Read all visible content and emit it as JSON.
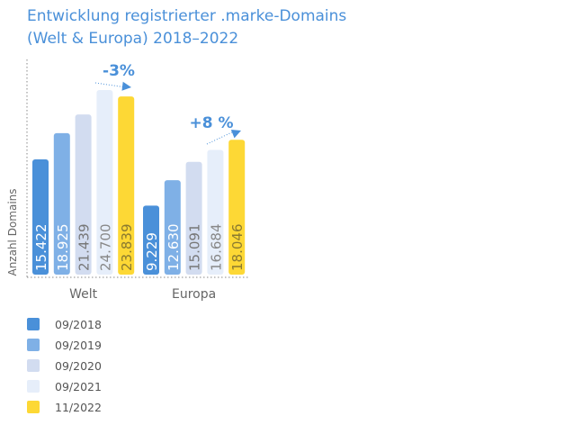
{
  "chart_data": {
    "type": "bar",
    "title": "Entwicklung registrierter .marke-Domains (Welt & Europa) 2018–2022",
    "title_lines": [
      "Entwicklung registrierter .marke-Domains",
      "(Welt & Europa) 2018–2022"
    ],
    "ylabel": "Anzahl Domains",
    "categories": [
      "Welt",
      "Europa"
    ],
    "series": [
      {
        "name": "09/2018",
        "color": "#4a90d9",
        "values": [
          15422,
          9229
        ],
        "labels": [
          "15.422",
          "9.229"
        ]
      },
      {
        "name": "09/2019",
        "color": "#7fb0e6",
        "values": [
          18925,
          12630
        ],
        "labels": [
          "18.925",
          "12.630"
        ]
      },
      {
        "name": "09/2020",
        "color": "#d2dcf0",
        "values": [
          21439,
          15091
        ],
        "labels": [
          "21.439",
          "15.091"
        ]
      },
      {
        "name": "09/2021",
        "color": "#e6eefa",
        "values": [
          24700,
          16684
        ],
        "labels": [
          "24.700",
          "16.684"
        ]
      },
      {
        "name": "11/2022",
        "color": "#fdd835",
        "values": [
          23839,
          18046
        ],
        "labels": [
          "23.839",
          "18.046"
        ]
      }
    ],
    "annotations": [
      "-3%",
      "+8 %"
    ],
    "ylim": [
      0,
      25000
    ],
    "grid": false,
    "legend": "bottom-left"
  }
}
